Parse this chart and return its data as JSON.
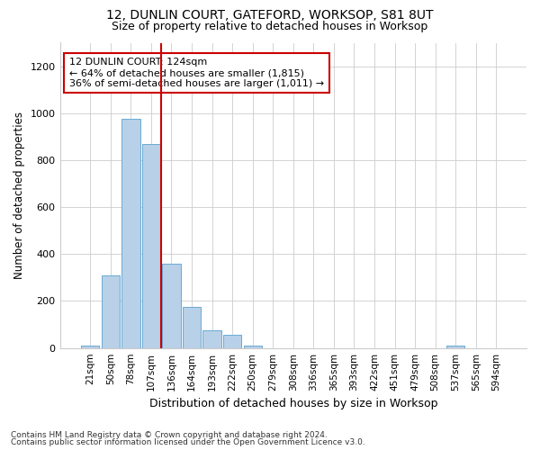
{
  "title1": "12, DUNLIN COURT, GATEFORD, WORKSOP, S81 8UT",
  "title2": "Size of property relative to detached houses in Worksop",
  "xlabel": "Distribution of detached houses by size in Worksop",
  "ylabel": "Number of detached properties",
  "categories": [
    "21sqm",
    "50sqm",
    "78sqm",
    "107sqm",
    "136sqm",
    "164sqm",
    "193sqm",
    "222sqm",
    "250sqm",
    "279sqm",
    "308sqm",
    "336sqm",
    "365sqm",
    "393sqm",
    "422sqm",
    "451sqm",
    "479sqm",
    "508sqm",
    "537sqm",
    "565sqm",
    "594sqm"
  ],
  "values": [
    10,
    310,
    975,
    870,
    360,
    175,
    75,
    55,
    10,
    0,
    0,
    0,
    0,
    0,
    0,
    0,
    0,
    0,
    10,
    0,
    0
  ],
  "bar_color": "#b8d0e8",
  "bar_edge_color": "#6aaad4",
  "property_line_color": "#cc0000",
  "annotation_text": "12 DUNLIN COURT: 124sqm\n← 64% of detached houses are smaller (1,815)\n36% of semi-detached houses are larger (1,011) →",
  "annotation_box_color": "#ffffff",
  "annotation_box_edge": "#cc0000",
  "ylim": [
    0,
    1300
  ],
  "yticks": [
    0,
    200,
    400,
    600,
    800,
    1000,
    1200
  ],
  "footer1": "Contains HM Land Registry data © Crown copyright and database right 2024.",
  "footer2": "Contains public sector information licensed under the Open Government Licence v3.0.",
  "background_color": "#ffffff",
  "plot_bg_color": "#ffffff"
}
